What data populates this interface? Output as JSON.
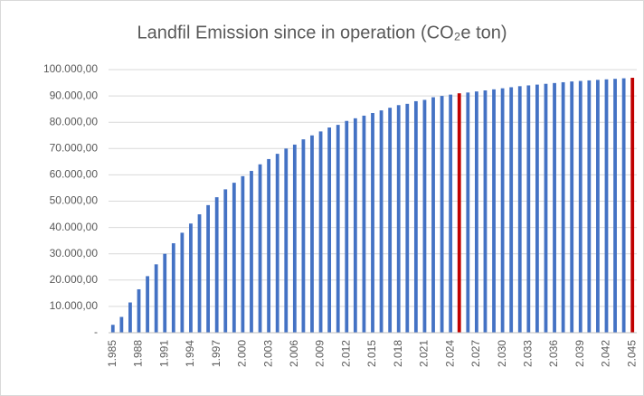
{
  "chart_data": {
    "type": "bar",
    "title": "Landfil Emission since in operation (CO₂e ton)",
    "categories": [
      "1.985",
      null,
      null,
      "1.988",
      null,
      null,
      "1.991",
      null,
      null,
      "1.994",
      null,
      null,
      "1.997",
      null,
      null,
      "2.000",
      null,
      null,
      "2.003",
      null,
      null,
      "2.006",
      null,
      null,
      "2.009",
      null,
      null,
      "2.012",
      null,
      null,
      "2.015",
      null,
      null,
      "2.018",
      null,
      null,
      "2.021",
      null,
      null,
      "2.024",
      null,
      null,
      "2.027",
      null,
      null,
      "2.030",
      null,
      null,
      "2.033",
      null,
      null,
      "2.036",
      null,
      null,
      "2.039",
      null,
      null,
      "2.042",
      null,
      null,
      "2.045"
    ],
    "values": [
      3000,
      6000,
      11500,
      16500,
      21500,
      26000,
      30000,
      34000,
      38000,
      41500,
      45000,
      48500,
      51500,
      54500,
      57000,
      59500,
      61500,
      64000,
      66000,
      68000,
      70000,
      71500,
      73500,
      75000,
      76500,
      78000,
      79000,
      80500,
      81500,
      82500,
      83500,
      84500,
      85500,
      86500,
      87000,
      88000,
      88500,
      89500,
      90000,
      90500,
      91000,
      91300,
      91700,
      92100,
      92500,
      92900,
      93300,
      93700,
      94000,
      94300,
      94600,
      94900,
      95200,
      95500,
      95700,
      95900,
      96100,
      96300,
      96500,
      96700,
      96900
    ],
    "colors": [
      "#4472c4",
      "#4472c4",
      "#4472c4",
      "#4472c4",
      "#4472c4",
      "#4472c4",
      "#4472c4",
      "#4472c4",
      "#4472c4",
      "#4472c4",
      "#4472c4",
      "#4472c4",
      "#4472c4",
      "#4472c4",
      "#4472c4",
      "#4472c4",
      "#4472c4",
      "#4472c4",
      "#4472c4",
      "#4472c4",
      "#4472c4",
      "#4472c4",
      "#4472c4",
      "#4472c4",
      "#4472c4",
      "#4472c4",
      "#4472c4",
      "#4472c4",
      "#4472c4",
      "#4472c4",
      "#4472c4",
      "#4472c4",
      "#4472c4",
      "#4472c4",
      "#4472c4",
      "#4472c4",
      "#4472c4",
      "#4472c4",
      "#4472c4",
      "#4472c4",
      "#c00000",
      "#4472c4",
      "#4472c4",
      "#4472c4",
      "#4472c4",
      "#4472c4",
      "#4472c4",
      "#4472c4",
      "#4472c4",
      "#4472c4",
      "#4472c4",
      "#4472c4",
      "#4472c4",
      "#4472c4",
      "#4472c4",
      "#4472c4",
      "#4472c4",
      "#4472c4",
      "#4472c4",
      "#4472c4",
      "#c00000"
    ],
    "ylim": [
      0,
      100000
    ],
    "yticks": [
      {
        "value": 0,
        "label": "-"
      },
      {
        "value": 10000,
        "label": "10.000,00"
      },
      {
        "value": 20000,
        "label": "20.000,00"
      },
      {
        "value": 30000,
        "label": "30.000,00"
      },
      {
        "value": 40000,
        "label": "40.000,00"
      },
      {
        "value": 50000,
        "label": "50.000,00"
      },
      {
        "value": 60000,
        "label": "60.000,00"
      },
      {
        "value": 70000,
        "label": "70.000,00"
      },
      {
        "value": 80000,
        "label": "80.000,00"
      },
      {
        "value": 90000,
        "label": "90.000,00"
      },
      {
        "value": 100000,
        "label": "100.000,00"
      }
    ],
    "grid": true
  }
}
